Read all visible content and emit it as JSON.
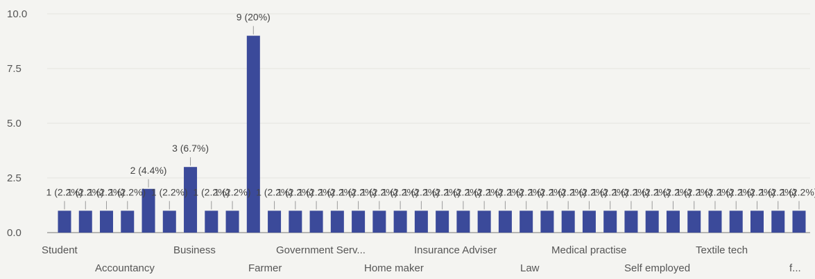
{
  "chart_data": {
    "type": "bar",
    "title": "",
    "xlabel": "",
    "ylabel": "",
    "ylim": [
      0,
      10
    ],
    "yticks": [
      "0.0",
      "2.5",
      "5.0",
      "7.5",
      "10.0"
    ],
    "grid": true,
    "legend": "none",
    "bar_color": "#3b4a9a",
    "visible_categories": [
      "Student",
      "Accountancy",
      "Business",
      "Farmer",
      "Government Serv...",
      "Home maker",
      "Insurance Adviser",
      "Law",
      "Medical practise",
      "Self employed",
      "Textile tech",
      "f..."
    ],
    "values": [
      1,
      1,
      1,
      1,
      2,
      1,
      3,
      1,
      1,
      9,
      1,
      1,
      1,
      1,
      1,
      1,
      1,
      1,
      1,
      1,
      1,
      1,
      1,
      1,
      1,
      1,
      1,
      1,
      1,
      1,
      1,
      1,
      1,
      1,
      1,
      1
    ],
    "data_labels": [
      "1 (2.2%)",
      "1 (2.2%)",
      "1 (2.2%)",
      "1 (2.2%)",
      "2 (4.4%)",
      "1 (2.2%)",
      "3 (6.7%)",
      "1 (2.2%)",
      "1 (2.2%)",
      "9 (20%)",
      "1 (2.2%)",
      "1 (2.2%)",
      "1 (2.2%)",
      "1 (2.2%)",
      "1 (2.2%)",
      "1 (2.2%)",
      "1 (2.2%)",
      "1 (2.2%)",
      "1 (2.2%)",
      "1 (2.2%)",
      "1 (2.2%)",
      "1 (2.2%)",
      "1 (2.2%)",
      "1 (2.2%)",
      "1 (2.2%)",
      "1 (2.2%)",
      "1 (2.2%)",
      "1 (2.2%)",
      "1 (2.2%)",
      "1 (2.2%)",
      "1 (2.2%)",
      "1 (2.2%)",
      "1 (2.2%)",
      "1 (2.2%)",
      "1 (2.2%)",
      "1 (2.2%)"
    ]
  }
}
